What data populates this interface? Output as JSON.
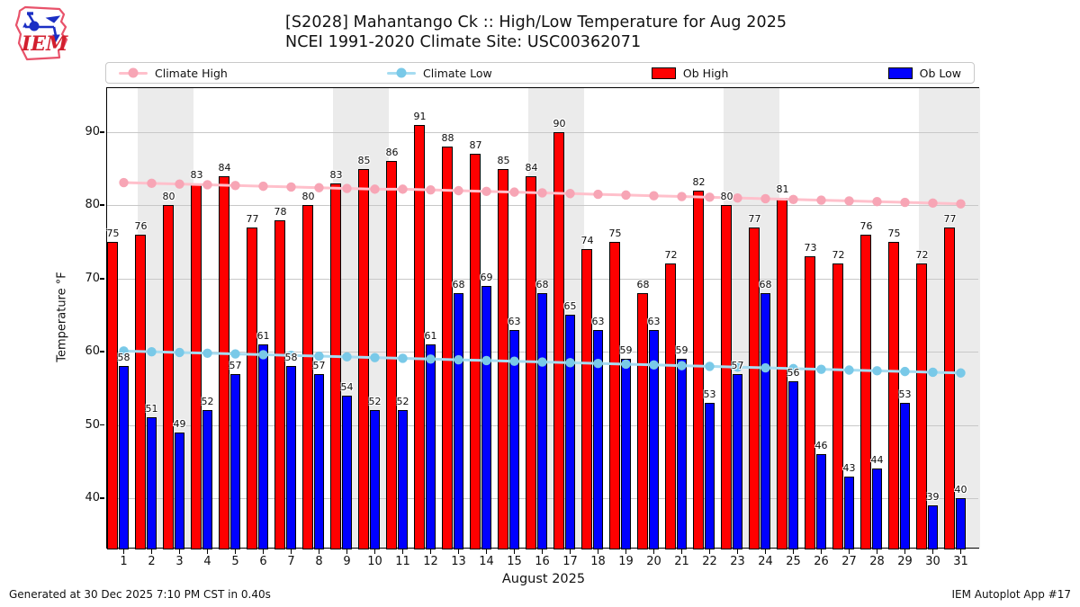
{
  "header": {
    "title_line1": "[S2028] Mahantango Ck :: High/Low Temperature for Aug 2025",
    "title_line2": "NCEI 1991-2020 Climate Site: USC00362071",
    "logo_text": "IEM"
  },
  "legend": {
    "items": [
      {
        "label": "Climate High",
        "swatch": "line",
        "color": "#ffc0cb",
        "dot_color": "#f7a5b5"
      },
      {
        "label": "Climate Low",
        "swatch": "line",
        "color": "#a6dcf1",
        "dot_color": "#79c9e8"
      },
      {
        "label": "Ob High",
        "swatch": "rect",
        "color": "#ff0000"
      },
      {
        "label": "Ob Low",
        "swatch": "rect",
        "color": "#0000ff"
      }
    ]
  },
  "chart_data": {
    "type": "bar",
    "title": "[S2028] Mahantango Ck :: High/Low Temperature for Aug 2025",
    "subtitle": "NCEI 1991-2020 Climate Site: USC00362071",
    "xlabel": "August 2025",
    "ylabel": "Temperature °F",
    "ylim": [
      33,
      96
    ],
    "yticks": [
      40,
      50,
      60,
      70,
      80,
      90
    ],
    "grid": true,
    "legend_position": "top",
    "categories": [
      1,
      2,
      3,
      4,
      5,
      6,
      7,
      8,
      9,
      10,
      11,
      12,
      13,
      14,
      15,
      16,
      17,
      18,
      19,
      20,
      21,
      22,
      23,
      24,
      25,
      26,
      27,
      28,
      29,
      30,
      31
    ],
    "weekend_bands": [
      [
        2,
        3
      ],
      [
        9,
        10
      ],
      [
        16,
        17
      ],
      [
        23,
        24
      ],
      [
        30,
        31
      ]
    ],
    "series": [
      {
        "name": "Ob High",
        "type": "bar",
        "color": "#ff0000",
        "values": [
          75,
          76,
          80,
          83,
          84,
          77,
          78,
          80,
          83,
          85,
          86,
          91,
          88,
          87,
          85,
          84,
          90,
          74,
          75,
          68,
          72,
          82,
          80,
          77,
          81,
          73,
          72,
          76,
          75,
          72,
          77
        ]
      },
      {
        "name": "Ob Low",
        "type": "bar",
        "color": "#0000ff",
        "values": [
          58,
          51,
          49,
          52,
          57,
          61,
          58,
          57,
          54,
          52,
          52,
          61,
          68,
          69,
          63,
          68,
          65,
          63,
          59,
          63,
          59,
          53,
          57,
          68,
          56,
          46,
          43,
          44,
          53,
          39,
          40
        ]
      },
      {
        "name": "Climate High",
        "type": "line",
        "color": "#ffc0cb",
        "marker_color": "#f7a5b5",
        "values": [
          83.1,
          83.0,
          82.9,
          82.8,
          82.7,
          82.6,
          82.5,
          82.4,
          82.3,
          82.2,
          82.2,
          82.1,
          82.0,
          81.9,
          81.8,
          81.7,
          81.6,
          81.5,
          81.4,
          81.3,
          81.2,
          81.1,
          81.0,
          80.9,
          80.8,
          80.7,
          80.6,
          80.5,
          80.4,
          80.3,
          80.2
        ]
      },
      {
        "name": "Climate Low",
        "type": "line",
        "color": "#a6dcf1",
        "marker_color": "#79c9e8",
        "values": [
          60.1,
          60.0,
          59.9,
          59.8,
          59.7,
          59.6,
          59.5,
          59.4,
          59.3,
          59.2,
          59.1,
          59.0,
          58.9,
          58.8,
          58.7,
          58.6,
          58.5,
          58.4,
          58.3,
          58.2,
          58.1,
          58.0,
          57.9,
          57.8,
          57.7,
          57.6,
          57.5,
          57.4,
          57.3,
          57.2,
          57.1
        ]
      }
    ]
  },
  "footer": {
    "left": "Generated at 30 Dec 2025 7:10 PM CST in 0.40s",
    "right": "IEM Autoplot App #17"
  }
}
